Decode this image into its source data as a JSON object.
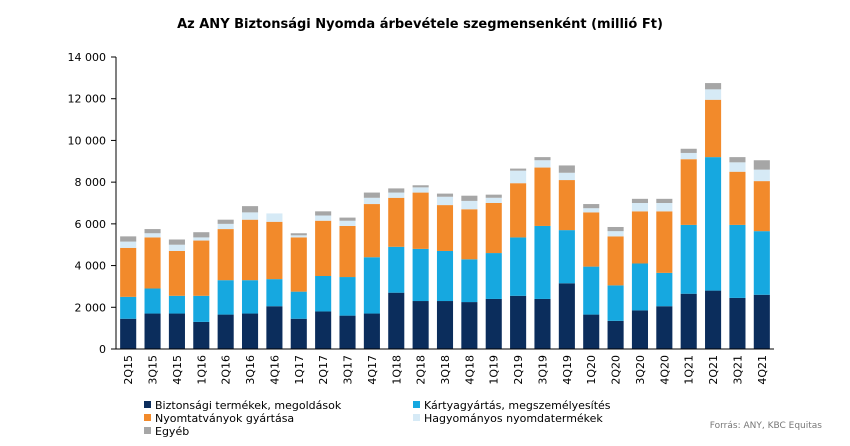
{
  "chart_data": {
    "type": "bar",
    "stacked": true,
    "title": "Az ANY Biztonsági Nyomda árbevétele szegmensenként (millió Ft)",
    "xlabel": "",
    "ylabel": "",
    "ylim": [
      0,
      14000
    ],
    "yticks": [
      0,
      2000,
      4000,
      6000,
      8000,
      10000,
      12000,
      14000
    ],
    "ytick_labels": [
      "0",
      "2 000",
      "4 000",
      "6 000",
      "8 000",
      "10 000",
      "12 000",
      "14 000"
    ],
    "grid": false,
    "legend_position": "bottom",
    "source": "Forrás: ANY, KBC Equitas",
    "categories": [
      "2Q15",
      "3Q15",
      "4Q15",
      "1Q16",
      "2Q16",
      "3Q16",
      "4Q16",
      "1Q17",
      "2Q17",
      "3Q17",
      "4Q17",
      "1Q18",
      "2Q18",
      "3Q18",
      "4Q18",
      "1Q19",
      "2Q19",
      "3Q19",
      "4Q19",
      "1Q20",
      "2Q20",
      "3Q20",
      "4Q20",
      "1Q21",
      "2Q21",
      "3Q21",
      "4Q21"
    ],
    "series": [
      {
        "name": "Biztonsági termékek, megoldások",
        "color": "#0b2d5c",
        "values": [
          1450,
          1700,
          1700,
          1300,
          1650,
          1700,
          2050,
          1450,
          1800,
          1600,
          1700,
          2700,
          2300,
          2300,
          2250,
          2400,
          2550,
          2400,
          3150,
          1650,
          1350,
          1850,
          2050,
          2650,
          2800,
          2450,
          2600
        ]
      },
      {
        "name": "Kártyagyártás, megszemélyesítés",
        "color": "#16a8e0",
        "values": [
          1050,
          1200,
          850,
          1250,
          1650,
          1600,
          1300,
          1300,
          1700,
          1850,
          2700,
          2200,
          2500,
          2400,
          2050,
          2200,
          2800,
          3500,
          2550,
          2300,
          1700,
          2250,
          1600,
          3300,
          6400,
          3500,
          3050
        ]
      },
      {
        "name": "Nyomtatványok gyártása",
        "color": "#f28a2b",
        "values": [
          2350,
          2450,
          2150,
          2650,
          2450,
          2900,
          2750,
          2600,
          2650,
          2450,
          2550,
          2350,
          2700,
          2200,
          2400,
          2400,
          2600,
          2800,
          2400,
          2600,
          2350,
          2500,
          2950,
          3150,
          2750,
          2550,
          2400
        ]
      },
      {
        "name": "Hagyományos nyomdatermékek",
        "color": "#d6eaf6",
        "values": [
          300,
          200,
          300,
          150,
          250,
          350,
          400,
          100,
          250,
          250,
          300,
          250,
          250,
          400,
          400,
          250,
          600,
          350,
          350,
          200,
          250,
          400,
          400,
          300,
          500,
          450,
          550
        ]
      },
      {
        "name": "Egyéb",
        "color": "#a6a6a6",
        "values": [
          250,
          200,
          250,
          250,
          200,
          300,
          0,
          100,
          200,
          150,
          250,
          200,
          100,
          150,
          250,
          150,
          100,
          150,
          350,
          200,
          200,
          200,
          200,
          200,
          300,
          250,
          450
        ]
      }
    ]
  }
}
